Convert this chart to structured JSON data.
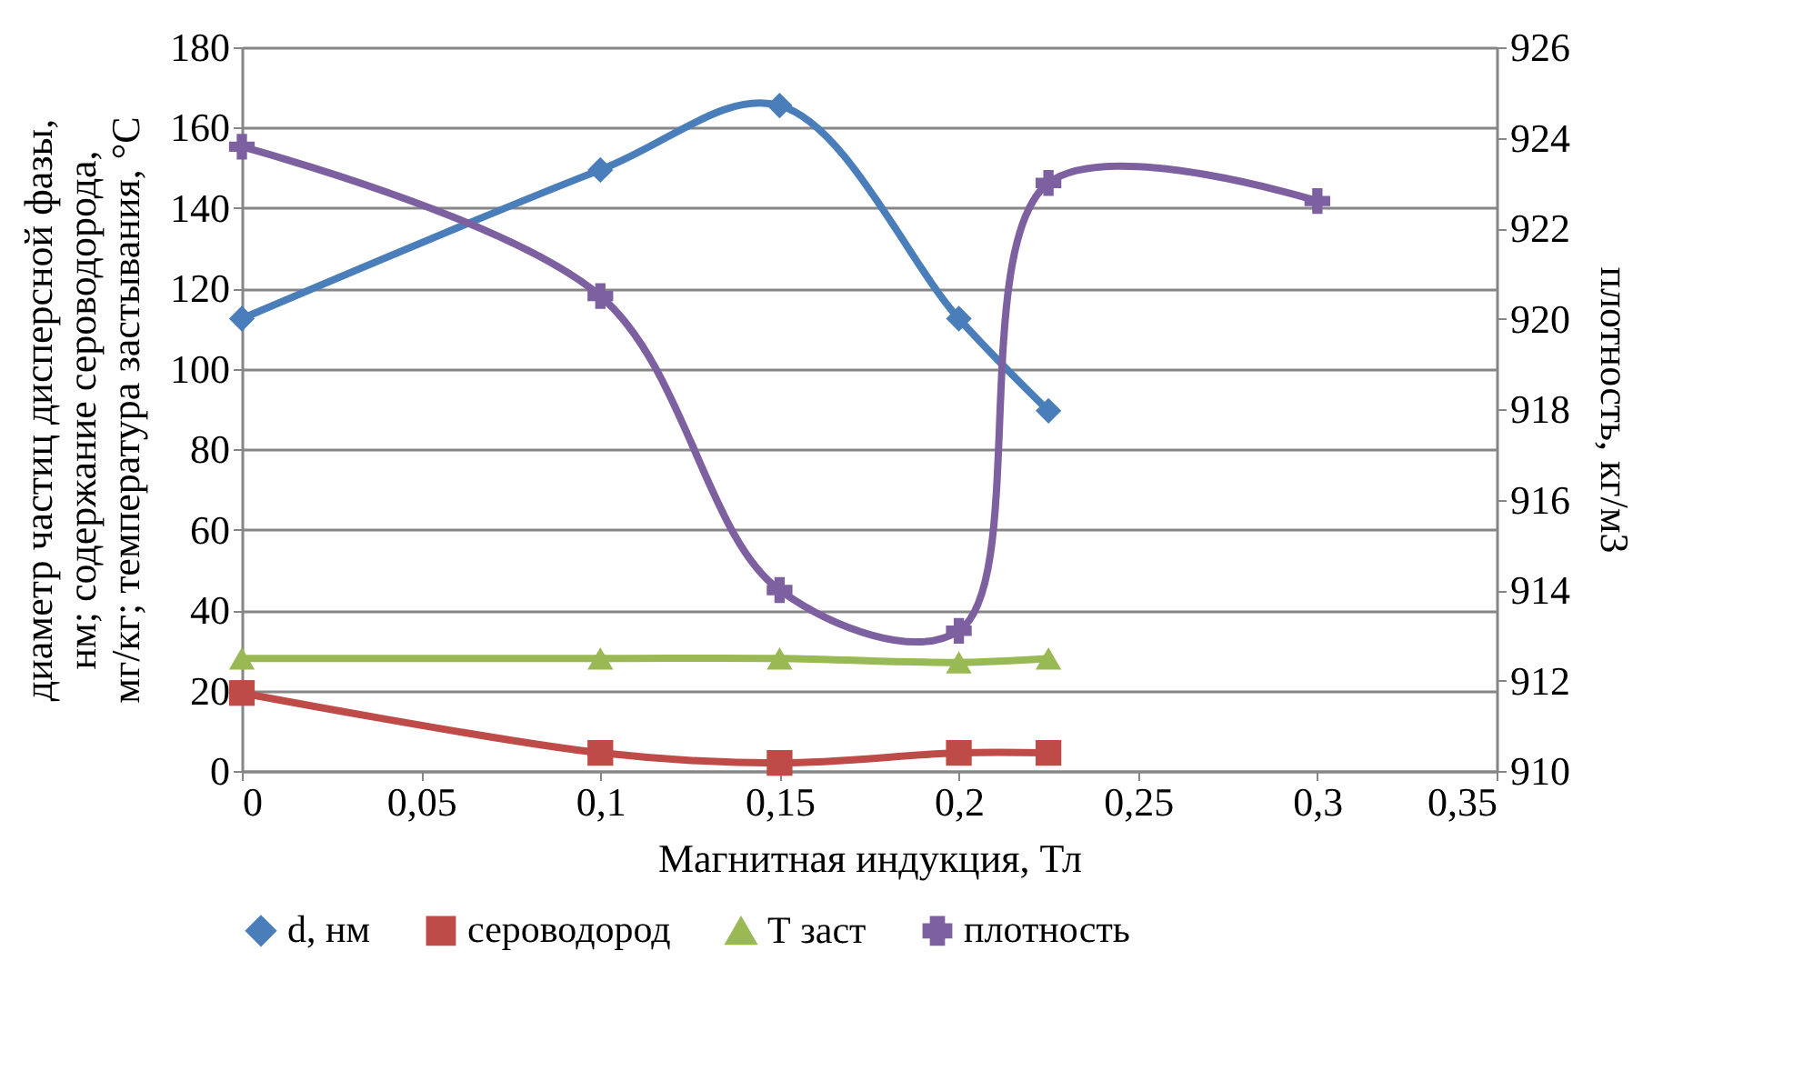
{
  "chart_data": {
    "type": "line",
    "xlabel": "Магнитная индукция, Тл",
    "ylabel": "диаметр частиц дисперсной фазы, нм; содержание сероводорода, мг/кг; температура застывания, °С",
    "y2label": "плотность, кг/м3",
    "xlim": [
      0,
      0.35
    ],
    "xticks": [
      0,
      {
        "value": 0.05,
        "label": "0,05"
      },
      {
        "value": 0.1,
        "label": "0,1"
      },
      {
        "value": 0.15,
        "label": "0,15"
      },
      {
        "value": 0.2,
        "label": "0,2"
      },
      {
        "value": 0.25,
        "label": "0,25"
      },
      {
        "value": 0.3,
        "label": "0,3"
      },
      {
        "value": 0.35,
        "label": "0,35"
      }
    ],
    "ylim": [
      0,
      180
    ],
    "yticks": [
      0,
      20,
      40,
      60,
      80,
      100,
      120,
      140,
      160,
      180
    ],
    "y2lim": [
      910,
      926
    ],
    "y2ticks": [
      910,
      912,
      914,
      916,
      918,
      920,
      922,
      924,
      926
    ],
    "grid": "y",
    "legend": "bottom",
    "line_style": "solid",
    "series": [
      {
        "name": "d, нм",
        "color": "#4a7ebb",
        "marker": "diamond",
        "x": [
          0,
          0.1,
          0.15,
          0.2,
          0.225
        ],
        "values": [
          112.5,
          149.5,
          165.5,
          112.5,
          89.6
        ]
      },
      {
        "name": "сероводород",
        "color": "#be4b48",
        "marker": "square",
        "x": [
          0,
          0.1,
          0.15,
          0.2,
          0.225
        ],
        "values": [
          19.4,
          4.5,
          2,
          4.5,
          4.5
        ]
      },
      {
        "name": "Т заст",
        "color": "#98b954",
        "marker": "triangle",
        "x": [
          0,
          0.1,
          0.15,
          0.2,
          0.225
        ],
        "values": [
          28,
          28,
          28,
          27,
          28
        ]
      },
      {
        "name": "плотность",
        "color": "#7d60a0",
        "marker": "cross",
        "axis": "y2",
        "x": [
          0,
          0.1,
          0.15,
          0.2,
          0.225,
          0.3
        ],
        "values": [
          923.8,
          920.5,
          914.0,
          913.1,
          923.0,
          922.6
        ]
      }
    ]
  }
}
